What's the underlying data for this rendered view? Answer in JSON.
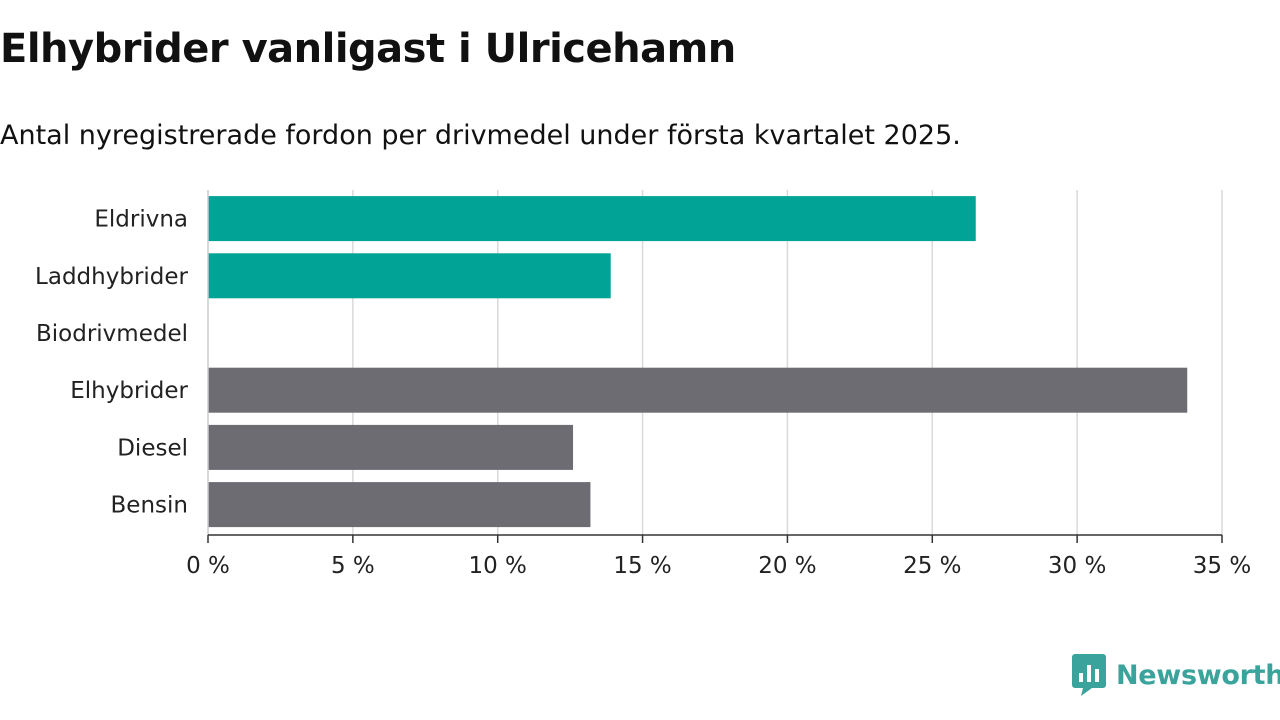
{
  "title": "Elhybrider vanligast i Ulricehamn",
  "subtitle": "Antal nyregistrerade fordon per drivmedel under första kvartalet 2025.",
  "brand": {
    "name": "Newsworthy",
    "icon": "newsworthy-logo-icon",
    "color": "#3aa39b"
  },
  "colors": {
    "highlight": "#00a396",
    "other": "#6d6c73",
    "grid": "#d9d9d9",
    "axis": "#333333"
  },
  "chart_data": {
    "type": "bar",
    "orientation": "horizontal",
    "categories": [
      "Eldrivna",
      "Laddhybrider",
      "Biodrivmedel",
      "Elhybrider",
      "Diesel",
      "Bensin"
    ],
    "values": [
      26.5,
      13.9,
      0,
      33.8,
      12.6,
      13.2
    ],
    "bar_colors": [
      "#00a396",
      "#00a396",
      "#00a396",
      "#6d6c73",
      "#6d6c73",
      "#6d6c73"
    ],
    "xlim": [
      0,
      35
    ],
    "xticks": [
      0,
      5,
      10,
      15,
      20,
      25,
      30,
      35
    ],
    "xtick_labels": [
      "0 %",
      "5 %",
      "10 %",
      "15 %",
      "20 %",
      "25 %",
      "30 %",
      "35 %"
    ],
    "xlabel": "",
    "ylabel": "",
    "grid": "vertical",
    "legend": "none"
  }
}
